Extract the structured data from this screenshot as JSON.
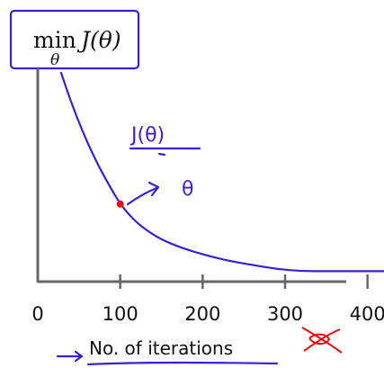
{
  "chart_data": {
    "type": "line",
    "title": {
      "operator": "min",
      "subscript": "θ",
      "expression": "J(θ)"
    },
    "xlabel": "No. of iterations",
    "ylabel": "",
    "xlim": [
      0,
      420
    ],
    "ylim": [
      0,
      1
    ],
    "x_ticks": [
      0,
      100,
      200,
      300,
      400
    ],
    "x_tick_labels": [
      "0",
      "100",
      "200",
      "300",
      "400"
    ],
    "grid": false,
    "series": [
      {
        "x": [
          28,
          40,
          55,
          70,
          85,
          100,
          115,
          130,
          150,
          175,
          200,
          230,
          260,
          290,
          320,
          350,
          380,
          400,
          420
        ],
        "y": [
          1.0,
          0.86,
          0.71,
          0.58,
          0.47,
          0.37,
          0.3,
          0.25,
          0.2,
          0.16,
          0.13,
          0.1,
          0.08,
          0.06,
          0.05,
          0.05,
          0.05,
          0.05,
          0.05
        ],
        "color": "#3b1fd1"
      }
    ],
    "highlight_point": {
      "x": 100,
      "y": 0.37,
      "color": "#e01010"
    },
    "annotations": {
      "handwritten_axis_label": "J(θ)",
      "handwritten_arrow_theta": "θ",
      "crossed_out_tick": "400"
    },
    "colors": {
      "ink": "#3b1fd1",
      "axis": "#666666",
      "marker": "#e01010"
    }
  }
}
